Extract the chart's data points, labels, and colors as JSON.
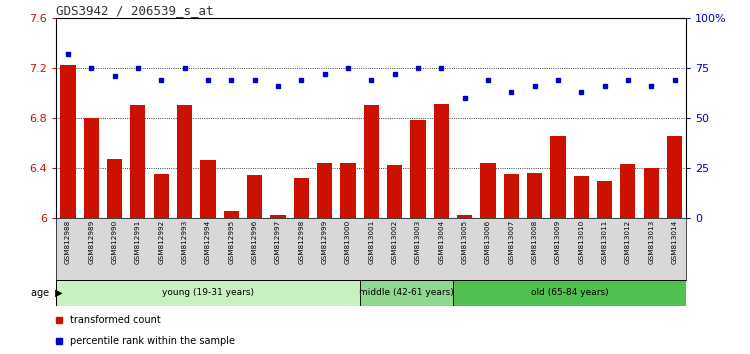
{
  "title": "GDS3942 / 206539_s_at",
  "samples": [
    "GSM812988",
    "GSM812989",
    "GSM812990",
    "GSM812991",
    "GSM812992",
    "GSM812993",
    "GSM812994",
    "GSM812995",
    "GSM812996",
    "GSM812997",
    "GSM812998",
    "GSM812999",
    "GSM813000",
    "GSM813001",
    "GSM813002",
    "GSM813003",
    "GSM813004",
    "GSM813005",
    "GSM813006",
    "GSM813007",
    "GSM813008",
    "GSM813009",
    "GSM813010",
    "GSM813011",
    "GSM813012",
    "GSM813013",
    "GSM813014"
  ],
  "red_bars": [
    7.22,
    6.8,
    6.47,
    6.9,
    6.35,
    6.9,
    6.46,
    6.05,
    6.34,
    6.02,
    6.32,
    6.44,
    6.44,
    6.9,
    6.42,
    6.78,
    6.91,
    6.02,
    6.44,
    6.35,
    6.36,
    6.65,
    6.33,
    6.29,
    6.43,
    6.4,
    6.65
  ],
  "blue_dots": [
    82,
    75,
    71,
    75,
    69,
    75,
    69,
    69,
    69,
    66,
    69,
    72,
    75,
    69,
    72,
    75,
    75,
    60,
    69,
    63,
    66,
    69,
    63,
    66,
    69,
    66,
    69
  ],
  "ylim_left": [
    6.0,
    7.6
  ],
  "ylim_right": [
    0,
    100
  ],
  "yticks_left": [
    6.0,
    6.4,
    6.8,
    7.2,
    7.6
  ],
  "ytick_labels_left": [
    "6",
    "6.4",
    "6.8",
    "7.2",
    "7.6"
  ],
  "yticks_right": [
    0,
    25,
    50,
    75,
    100
  ],
  "ytick_labels_right": [
    "0",
    "25",
    "50",
    "75",
    "100%"
  ],
  "groups": [
    {
      "label": "young (19-31 years)",
      "start": 0,
      "end": 13,
      "color": "#c8f0c0"
    },
    {
      "label": "middle (42-61 years)",
      "start": 13,
      "end": 17,
      "color": "#90d890"
    },
    {
      "label": "old (65-84 years)",
      "start": 17,
      "end": 27,
      "color": "#50c050"
    }
  ],
  "bar_color": "#cc1100",
  "dot_color": "#0000cc",
  "bar_baseline": 6.0,
  "legend_red": "transformed count",
  "legend_blue": "percentile rank within the sample"
}
